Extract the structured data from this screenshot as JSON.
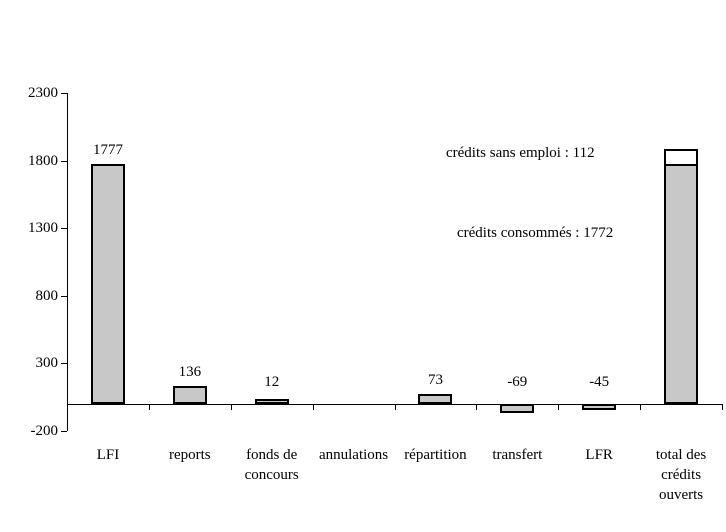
{
  "chart_data": {
    "type": "bar",
    "title": "",
    "background": "#ffffff",
    "bar_fill": "#c8c8c8",
    "bar_border": "#000000",
    "grid": false,
    "legend": false,
    "y_axis": {
      "ylim": [
        -200,
        2300
      ],
      "tick_step": 500,
      "ticks": [
        2300,
        1800,
        1300,
        800,
        300,
        -200
      ],
      "tick_labels": [
        "2300",
        "1800",
        "1300",
        "800",
        "300",
        "-200"
      ]
    },
    "xlabel": "",
    "ylabel": "",
    "categories": [
      "LFI",
      "reports",
      "fonds de concours",
      "annulations",
      "répartition",
      "transfert",
      "LFR",
      "total des crédits ouverts"
    ],
    "category_label_lines": [
      [
        "LFI"
      ],
      [
        "reports"
      ],
      [
        "fonds de",
        "concours"
      ],
      [
        "annulations"
      ],
      [
        "répartition"
      ],
      [
        "transfert"
      ],
      [
        "LFR"
      ],
      [
        "total des",
        "crédits",
        "ouverts"
      ]
    ],
    "values": [
      1777,
      136,
      12,
      0,
      73,
      -69,
      -45,
      1884
    ],
    "bars": [
      {
        "category": "LFI",
        "value": 1777,
        "label": "1777"
      },
      {
        "category": "reports",
        "value": 136,
        "label": "136"
      },
      {
        "category": "fonds de concours",
        "value": 12,
        "label": "12"
      },
      {
        "category": "annulations",
        "value": 0,
        "label": null
      },
      {
        "category": "répartition",
        "value": 73,
        "label": "73"
      },
      {
        "category": "transfert",
        "value": -69,
        "label": "-69"
      },
      {
        "category": "LFR",
        "value": -45,
        "label": "-45"
      },
      {
        "category": "total des crédits ouverts",
        "value": 1884,
        "label": null,
        "segments": [
          {
            "name": "crédits consommés",
            "value": 1772,
            "fill": "#c8c8c8"
          },
          {
            "name": "crédits sans emploi",
            "value": 112,
            "fill": "#ffffff"
          }
        ]
      }
    ],
    "annotations": [
      {
        "text": "crédits sans emploi : 112"
      },
      {
        "text": "crédits consommés : 1772"
      }
    ]
  }
}
